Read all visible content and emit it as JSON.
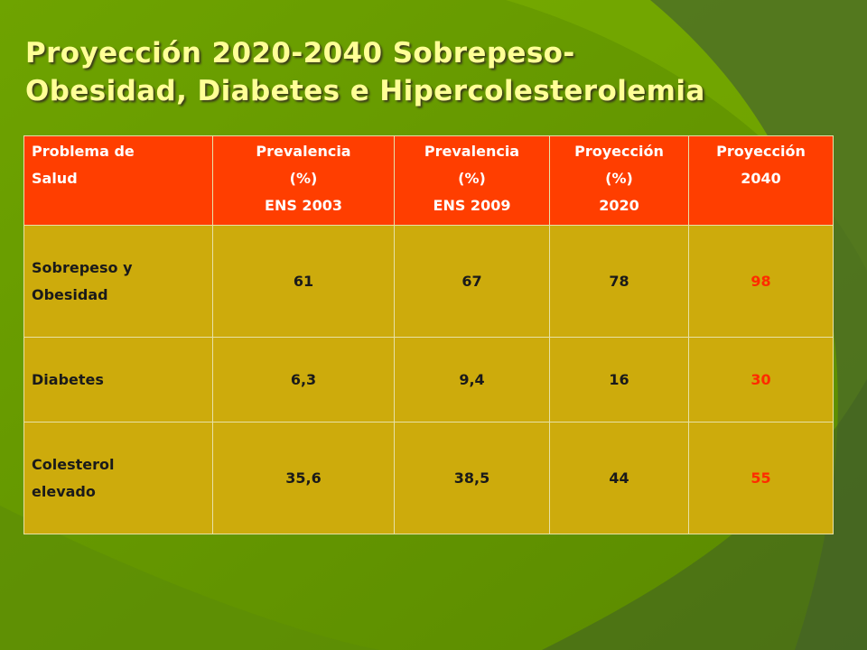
{
  "title": {
    "line1": "Proyección 2020-2040 Sobrepeso-",
    "line2": "Obesidad, Diabetes e Hipercolesterolemia"
  },
  "table": {
    "headers": [
      {
        "lines": [
          "Problema de",
          "Salud"
        ]
      },
      {
        "lines": [
          "Prevalencia",
          "(%)",
          "ENS 2003"
        ]
      },
      {
        "lines": [
          "Prevalencia",
          "(%)",
          "ENS 2009"
        ]
      },
      {
        "lines": [
          "Proyección",
          "(%)",
          "2020"
        ]
      },
      {
        "lines": [
          "Proyección",
          "2040"
        ]
      }
    ],
    "rows": [
      {
        "problem": [
          "Sobrepeso y",
          "Obesidad"
        ],
        "ens2003": "61",
        "ens2009": "67",
        "proj2020": "78",
        "proj2040": "98"
      },
      {
        "problem": [
          "Diabetes"
        ],
        "ens2003": "6,3",
        "ens2009": "9,4",
        "proj2020": "16",
        "proj2040": "30"
      },
      {
        "problem": [
          "Colesterol",
          "elevado"
        ],
        "ens2003": "35,6",
        "ens2009": "38,5",
        "proj2020": "44",
        "proj2040": "55"
      }
    ]
  },
  "colors": {
    "background": "#659700",
    "title": "#ffff96",
    "header_bg": "#ff3e00",
    "body_bg": "#cdab0c",
    "highlight_value": "#ff2b00"
  }
}
